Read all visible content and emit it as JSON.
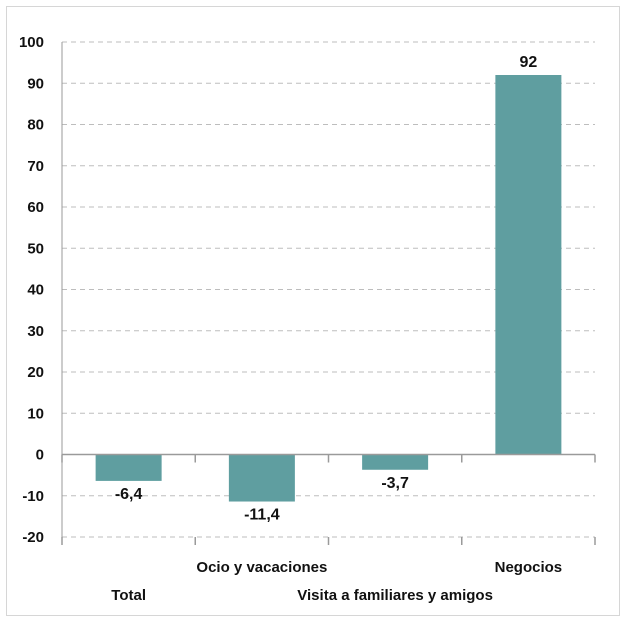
{
  "chart_data": {
    "type": "bar",
    "categories": [
      "Total",
      "Ocio y vacaciones",
      "Visita a familiares y amigos",
      "Negocios"
    ],
    "values": [
      -6.4,
      -11.4,
      -3.7,
      92
    ],
    "value_labels": [
      "-6,4",
      "-11,4",
      "-3,7",
      "92"
    ],
    "ylim": [
      -20,
      100
    ],
    "yticks": [
      -20,
      -10,
      0,
      10,
      20,
      30,
      40,
      50,
      60,
      70,
      80,
      90,
      100
    ],
    "title": "",
    "xlabel": "",
    "ylabel": "",
    "grid": true,
    "bar_color": "#5f9ea0",
    "grid_color": "#bdbdbd"
  }
}
